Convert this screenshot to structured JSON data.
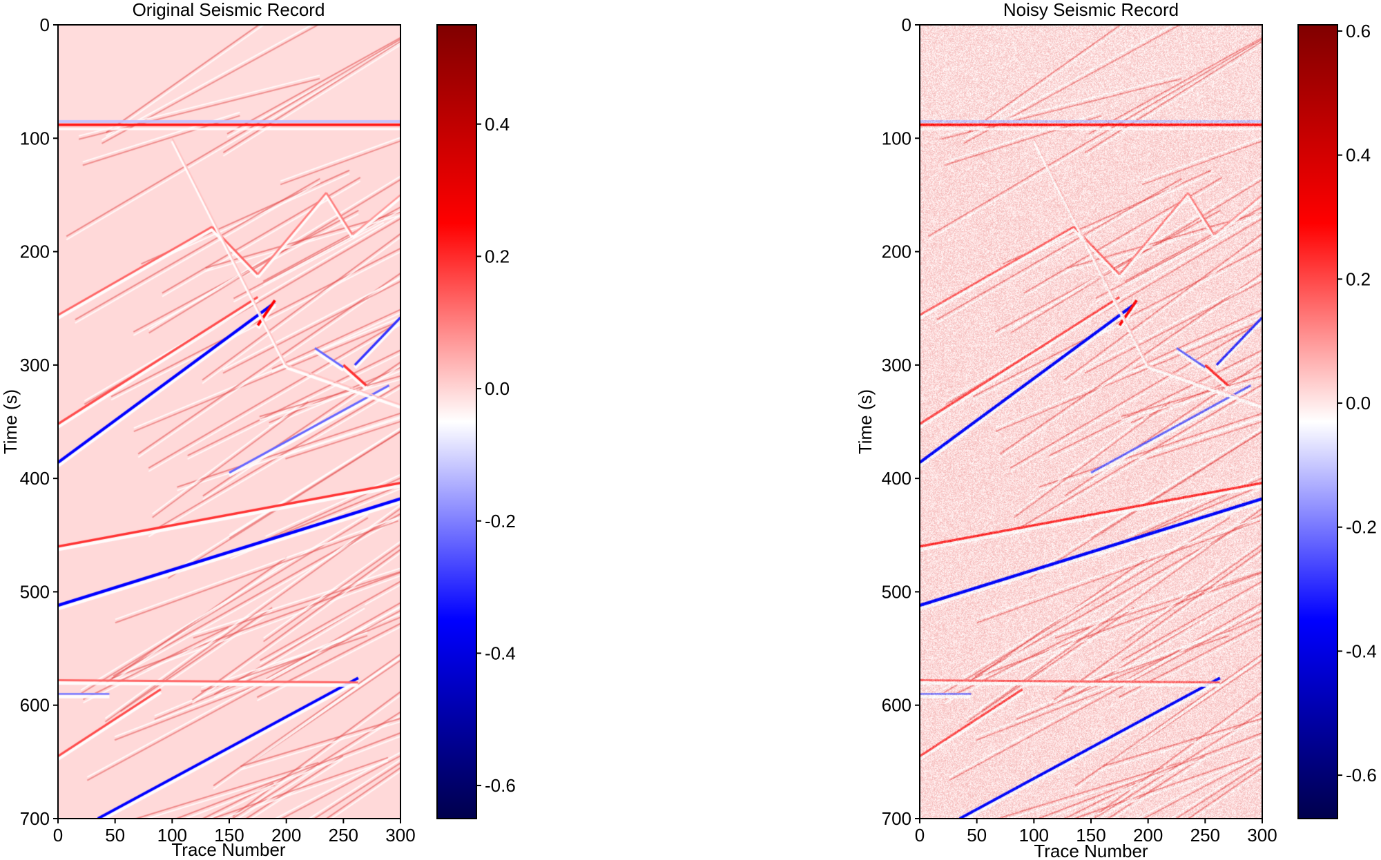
{
  "chart_data": [
    {
      "type": "heatmap",
      "title": "Original Seismic Record",
      "xlabel": "Trace Number",
      "ylabel": "Time (s)",
      "xlim": [
        0,
        300
      ],
      "ylim": [
        700,
        0
      ],
      "xticks": [
        "0",
        "50",
        "100",
        "150",
        "200",
        "250",
        "300"
      ],
      "yticks": [
        "0",
        "100",
        "200",
        "300",
        "400",
        "500",
        "600",
        "700"
      ],
      "colormap": "seismic (blue-white-red)",
      "colorbar": {
        "range": [
          -0.65,
          0.55
        ],
        "ticks": [
          "0.4",
          "0.2",
          "0.0",
          "-0.2",
          "-0.4",
          "-0.6"
        ],
        "tick_values": [
          0.4,
          0.2,
          0.0,
          -0.2,
          -0.4,
          -0.6
        ]
      },
      "noise": false
    },
    {
      "type": "heatmap",
      "title": "Noisy Seismic Record",
      "xlabel": "Trace Number",
      "ylabel": "Time (s)",
      "xlim": [
        0,
        300
      ],
      "ylim": [
        700,
        0
      ],
      "xticks": [
        "0",
        "50",
        "100",
        "150",
        "200",
        "250",
        "300"
      ],
      "yticks": [
        "0",
        "100",
        "200",
        "300",
        "400",
        "500",
        "600",
        "700"
      ],
      "colormap": "seismic (blue-white-red)",
      "colorbar": {
        "range": [
          -0.67,
          0.61
        ],
        "ticks": [
          "0.6",
          "0.4",
          "0.2",
          "0.0",
          "-0.2",
          "-0.4",
          "-0.6"
        ],
        "tick_values": [
          0.6,
          0.4,
          0.2,
          0.0,
          -0.2,
          -0.4,
          -0.6
        ]
      },
      "noise": true
    }
  ],
  "events": [
    {
      "kind": "flat",
      "t": 88,
      "amp": 0.45
    },
    {
      "kind": "line",
      "x0": 0,
      "t0": 512,
      "x1": 300,
      "t1": 418,
      "amp": -0.6
    },
    {
      "kind": "line",
      "x0": 0,
      "t0": 460,
      "x1": 300,
      "t1": 404,
      "amp": 0.4
    },
    {
      "kind": "line",
      "x0": 0,
      "t0": 386,
      "x1": 190,
      "t1": 245,
      "amp": -0.55
    },
    {
      "kind": "line",
      "x0": 0,
      "t0": 352,
      "x1": 175,
      "t1": 240,
      "amp": 0.35
    },
    {
      "kind": "line",
      "x0": 0,
      "t0": 256,
      "x1": 135,
      "t1": 178,
      "amp": 0.3
    },
    {
      "kind": "line",
      "x0": 135,
      "t0": 178,
      "x1": 175,
      "t1": 220,
      "amp": 0.3
    },
    {
      "kind": "line",
      "x0": 175,
      "t0": 220,
      "x1": 235,
      "t1": 148,
      "amp": 0.25
    },
    {
      "kind": "line",
      "x0": 235,
      "t0": 148,
      "x1": 258,
      "t1": 185,
      "amp": 0.25
    },
    {
      "kind": "line",
      "x0": 258,
      "t0": 185,
      "x1": 300,
      "t1": 150,
      "amp": 0.2
    },
    {
      "kind": "line",
      "x0": 260,
      "t0": 300,
      "x1": 300,
      "t1": 258,
      "amp": -0.4
    },
    {
      "kind": "line",
      "x0": 150,
      "t0": 395,
      "x1": 290,
      "t1": 318,
      "amp": -0.3
    },
    {
      "kind": "line",
      "x0": 35,
      "t0": 700,
      "x1": 263,
      "t1": 576,
      "amp": -0.5
    },
    {
      "kind": "line",
      "x0": 0,
      "t0": 645,
      "x1": 90,
      "t1": 586,
      "amp": 0.35
    },
    {
      "kind": "line",
      "x0": 0,
      "t0": 578,
      "x1": 263,
      "t1": 580,
      "amp": 0.3
    },
    {
      "kind": "line",
      "x0": 0,
      "t0": 590,
      "x1": 45,
      "t1": 590,
      "amp": -0.25
    },
    {
      "kind": "line",
      "x0": 250,
      "t0": 300,
      "x1": 270,
      "t1": 318,
      "amp": 0.4
    },
    {
      "kind": "line",
      "x0": 225,
      "t0": 285,
      "x1": 250,
      "t1": 302,
      "amp": -0.3
    },
    {
      "kind": "line",
      "x0": 175,
      "t0": 265,
      "x1": 190,
      "t1": 243,
      "amp": 0.5
    },
    {
      "kind": "line",
      "x0": 100,
      "t0": 100,
      "x1": 200,
      "t1": 300,
      "amp": 0.12
    },
    {
      "kind": "line",
      "x0": 200,
      "t0": 300,
      "x1": 300,
      "t1": 335,
      "amp": 0.12
    }
  ]
}
